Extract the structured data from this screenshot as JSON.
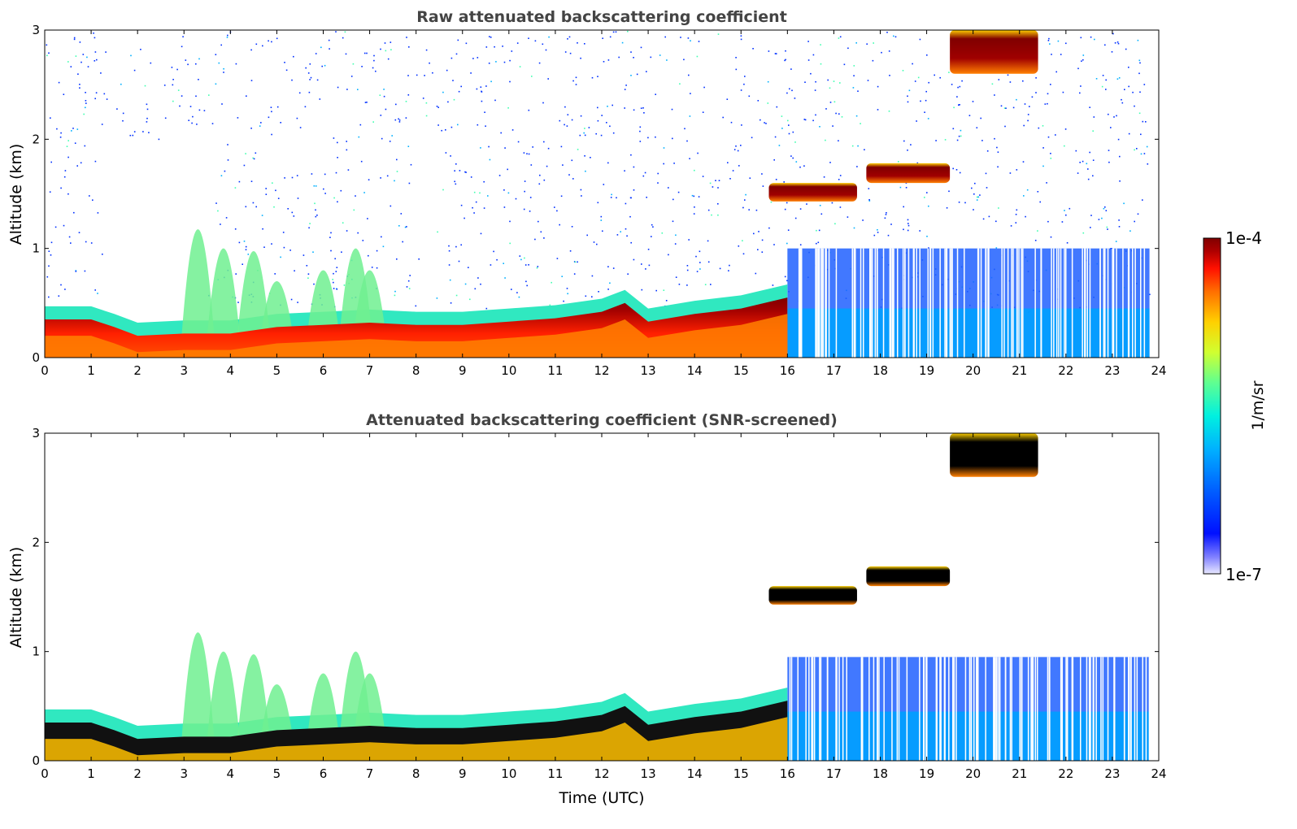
{
  "chart_data": [
    {
      "type": "heatmap",
      "title": "Raw attenuated backscattering coefficient",
      "xlabel": "",
      "ylabel": "Altitude (km)",
      "xlim": [
        0,
        24
      ],
      "ylim": [
        0,
        3
      ],
      "xticks": [
        0,
        1,
        2,
        3,
        4,
        5,
        6,
        7,
        8,
        9,
        10,
        11,
        12,
        13,
        14,
        15,
        16,
        17,
        18,
        19,
        20,
        21,
        22,
        23,
        24
      ],
      "yticks": [
        0,
        1,
        2,
        3
      ],
      "boundary_layer_top_km": [
        [
          0,
          0.35
        ],
        [
          1,
          0.35
        ],
        [
          1.5,
          0.28
        ],
        [
          2,
          0.2
        ],
        [
          3,
          0.22
        ],
        [
          4,
          0.22
        ],
        [
          5,
          0.28
        ],
        [
          6,
          0.3
        ],
        [
          7,
          0.32
        ],
        [
          8,
          0.3
        ],
        [
          9,
          0.3
        ],
        [
          10,
          0.33
        ],
        [
          11,
          0.36
        ],
        [
          12,
          0.42
        ],
        [
          12.5,
          0.5
        ],
        [
          13,
          0.33
        ],
        [
          14,
          0.4
        ],
        [
          15,
          0.45
        ],
        [
          16,
          0.55
        ]
      ],
      "cloud_layers": [
        {
          "t_start": 15.6,
          "t_end": 17.5,
          "base_km": 1.43,
          "top_km": 1.6
        },
        {
          "t_start": 17.7,
          "t_end": 19.5,
          "base_km": 1.6,
          "top_km": 1.78
        },
        {
          "t_start": 19.5,
          "t_end": 21.4,
          "base_km": 2.6,
          "top_km": 3.0
        }
      ]
    },
    {
      "type": "heatmap",
      "title": "Attenuated backscattering coefficient (SNR-screened)",
      "xlabel": "Time (UTC)",
      "ylabel": "Altitude (km)",
      "xlim": [
        0,
        24
      ],
      "ylim": [
        0,
        3
      ],
      "xticks": [
        0,
        1,
        2,
        3,
        4,
        5,
        6,
        7,
        8,
        9,
        10,
        11,
        12,
        13,
        14,
        15,
        16,
        17,
        18,
        19,
        20,
        21,
        22,
        23,
        24
      ],
      "yticks": [
        0,
        1,
        2,
        3
      ],
      "boundary_layer_top_km": [
        [
          0,
          0.35
        ],
        [
          1,
          0.35
        ],
        [
          1.5,
          0.28
        ],
        [
          2,
          0.2
        ],
        [
          3,
          0.22
        ],
        [
          4,
          0.22
        ],
        [
          5,
          0.28
        ],
        [
          6,
          0.3
        ],
        [
          7,
          0.32
        ],
        [
          8,
          0.3
        ],
        [
          9,
          0.3
        ],
        [
          10,
          0.33
        ],
        [
          11,
          0.36
        ],
        [
          12,
          0.42
        ],
        [
          12.5,
          0.5
        ],
        [
          13,
          0.33
        ],
        [
          14,
          0.4
        ],
        [
          15,
          0.45
        ],
        [
          16,
          0.55
        ]
      ],
      "cloud_layers": [
        {
          "t_start": 15.6,
          "t_end": 17.5,
          "base_km": 1.43,
          "top_km": 1.6
        },
        {
          "t_start": 17.7,
          "t_end": 19.5,
          "base_km": 1.6,
          "top_km": 1.78
        },
        {
          "t_start": 19.5,
          "t_end": 21.4,
          "base_km": 2.6,
          "top_km": 3.0
        }
      ]
    }
  ],
  "colorbar": {
    "label": "1/m/sr",
    "max_label": "1e-4",
    "min_label": "1e-7",
    "scale": "log",
    "colors": [
      "#e8e8ff",
      "#b0b0ff",
      "#6060ff",
      "#0010ff",
      "#0060ff",
      "#00b0ff",
      "#00f0e0",
      "#60ff90",
      "#d0ff30",
      "#ffd000",
      "#ff7000",
      "#ff1000",
      "#b00000",
      "#800000"
    ]
  }
}
